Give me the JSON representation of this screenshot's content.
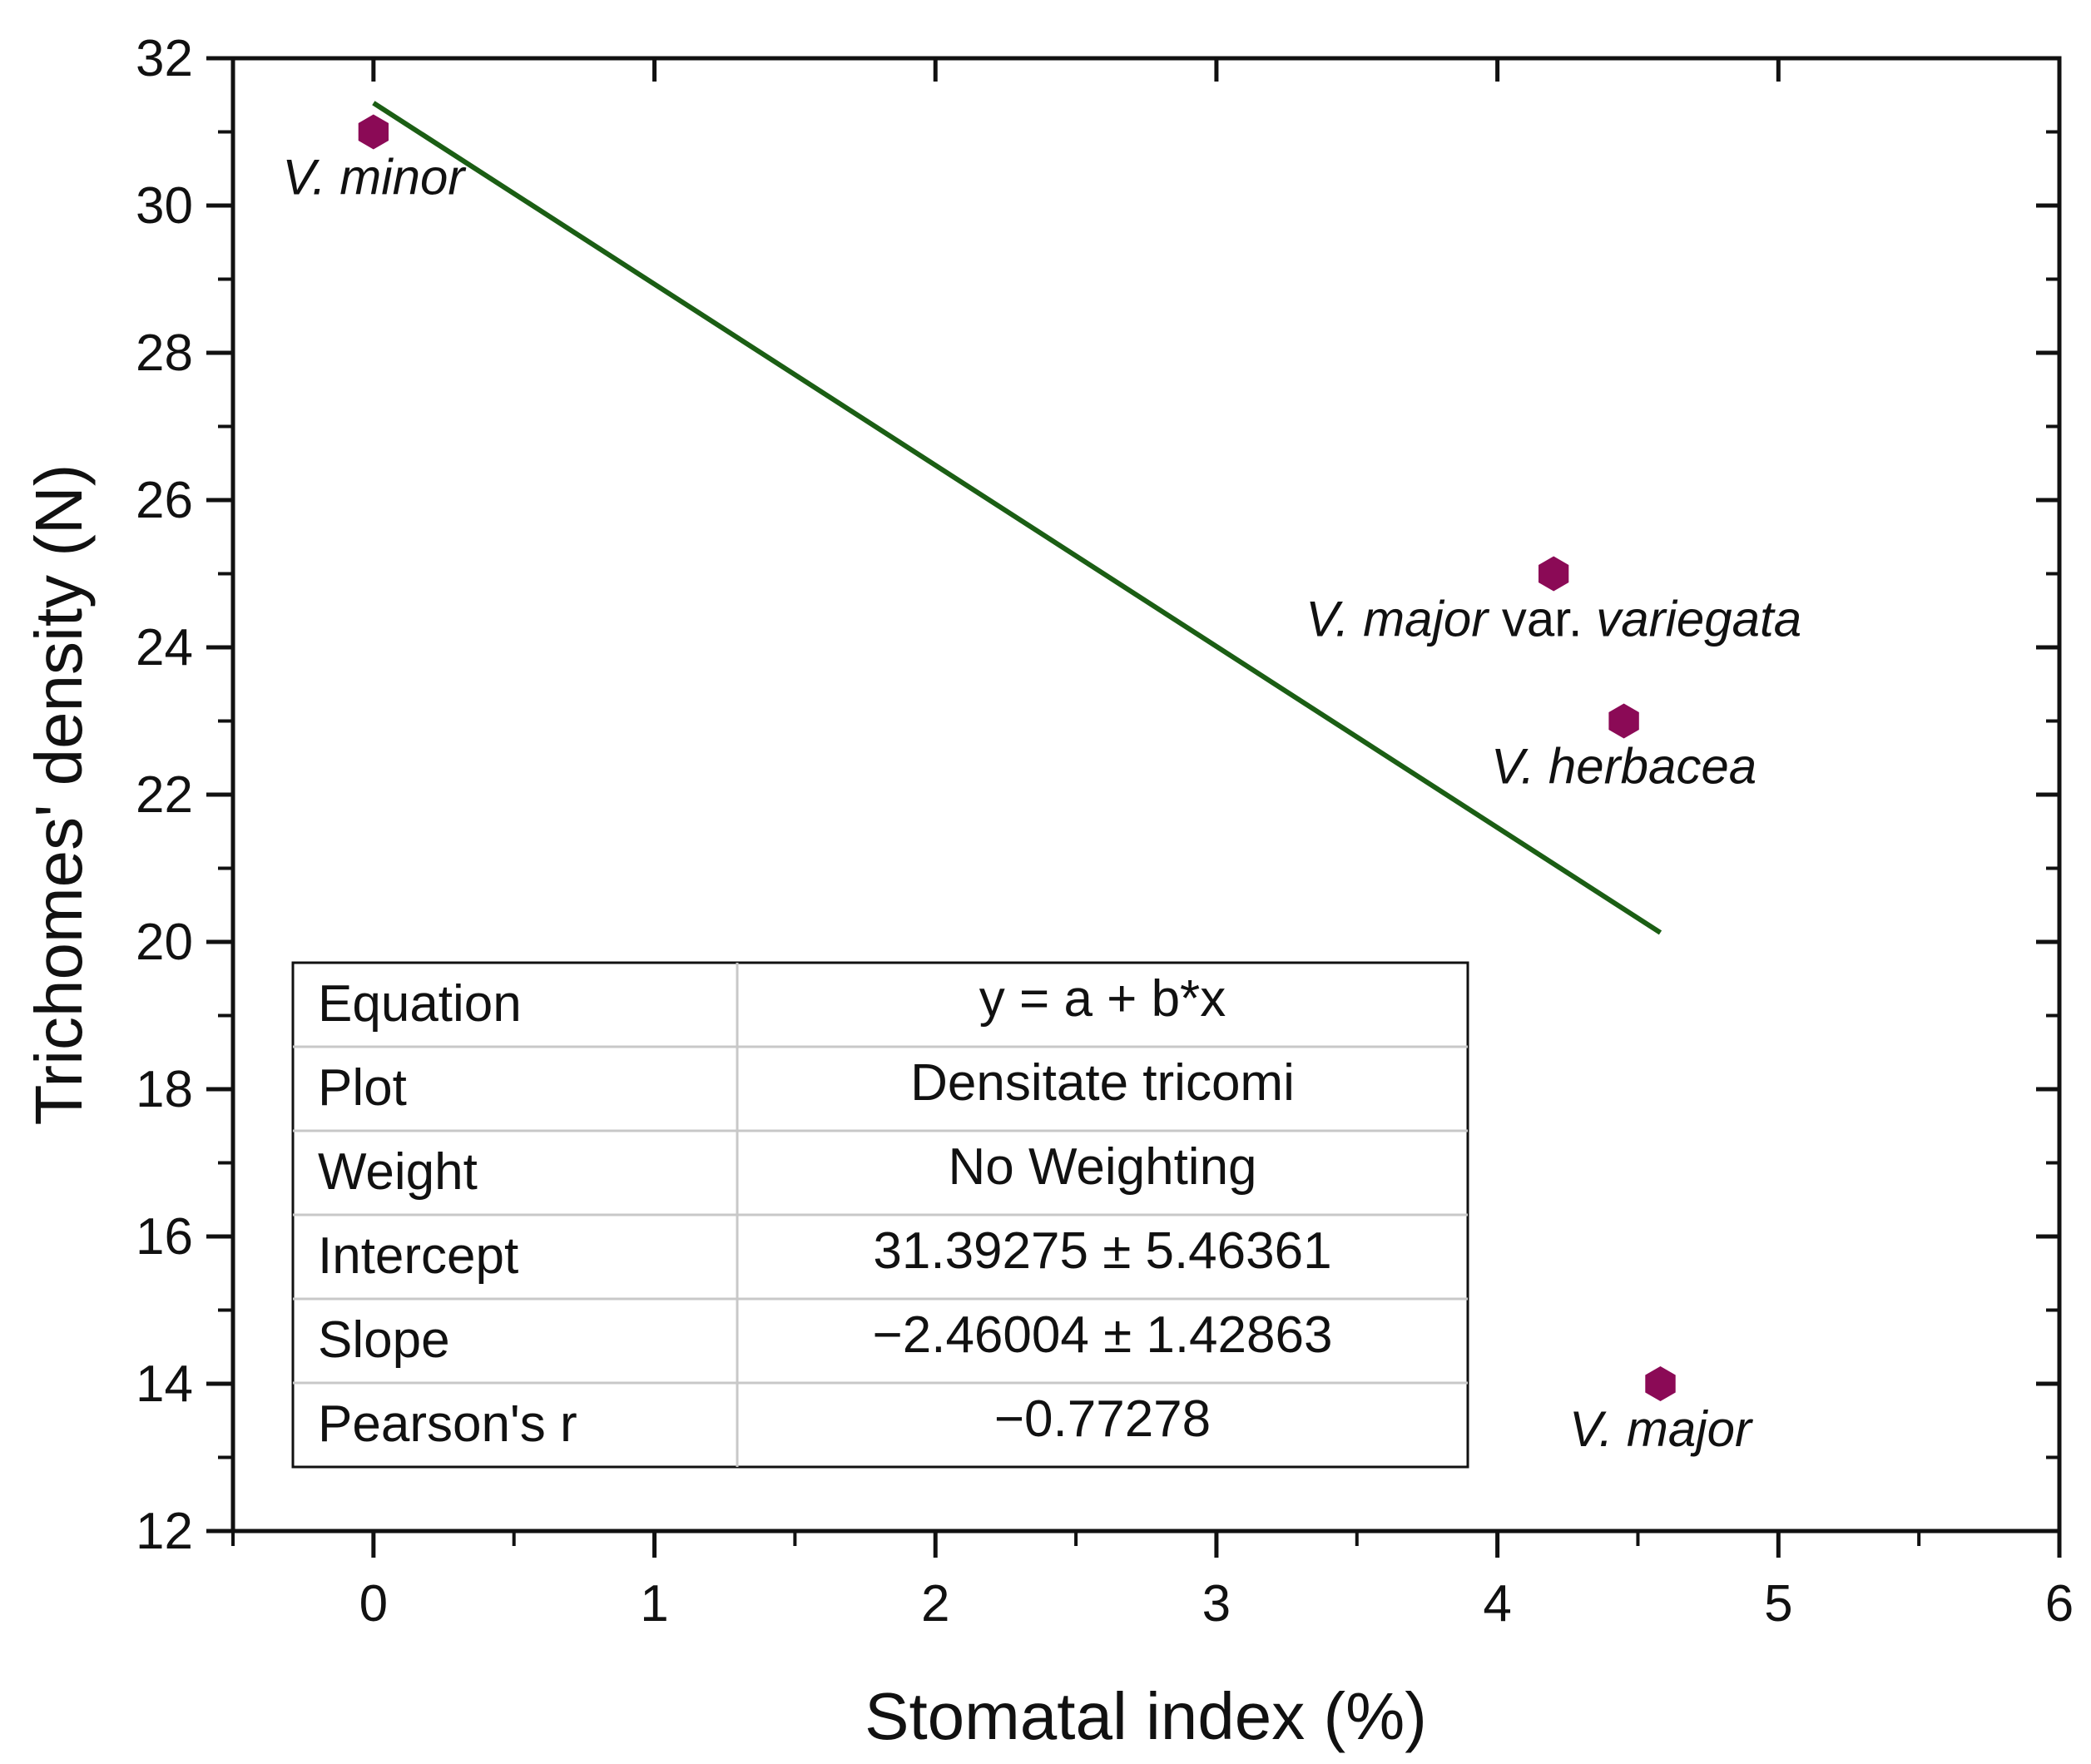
{
  "chart_data": {
    "type": "scatter",
    "title": "",
    "xlabel": "Stomatal index (%)",
    "ylabel": "Trichomes' density (N)",
    "xlim": [
      -0.5,
      6
    ],
    "ylim": [
      12,
      32
    ],
    "x_ticks": [
      "0",
      "1",
      "2",
      "3",
      "4",
      "5",
      "6"
    ],
    "y_ticks": [
      "12",
      "14",
      "16",
      "18",
      "20",
      "22",
      "24",
      "26",
      "28",
      "30",
      "32"
    ],
    "grid": false,
    "colors": {
      "points": "#8b0a56",
      "fit_line": "#1b5e14",
      "axis": "#111111"
    },
    "marker": "hexagon",
    "points": [
      {
        "x": 0.0,
        "y": 31.0,
        "label": "V. minor"
      },
      {
        "x": 4.2,
        "y": 25.0,
        "label_parts": [
          "V. major",
          " var. ",
          "variegata"
        ]
      },
      {
        "x": 4.45,
        "y": 23.0,
        "label": "V. herbacea"
      },
      {
        "x": 4.58,
        "y": 14.0,
        "label": "V. major"
      }
    ],
    "fit_line": {
      "x_start": 0.0,
      "x_end": 4.58,
      "intercept": 31.39275,
      "slope": -2.46004
    },
    "fit_table": {
      "rows": [
        {
          "key": "Equation",
          "value": "y = a + b*x"
        },
        {
          "key": "Plot",
          "value": "Densitate tricomi"
        },
        {
          "key": "Weight",
          "value": "No Weighting"
        },
        {
          "key": "Intercept",
          "value": "31.39275 ± 5.46361"
        },
        {
          "key": "Slope",
          "value": "−2.46004 ± 1.42863"
        },
        {
          "key": "Pearson's r",
          "value": "−0.77278"
        }
      ]
    }
  }
}
